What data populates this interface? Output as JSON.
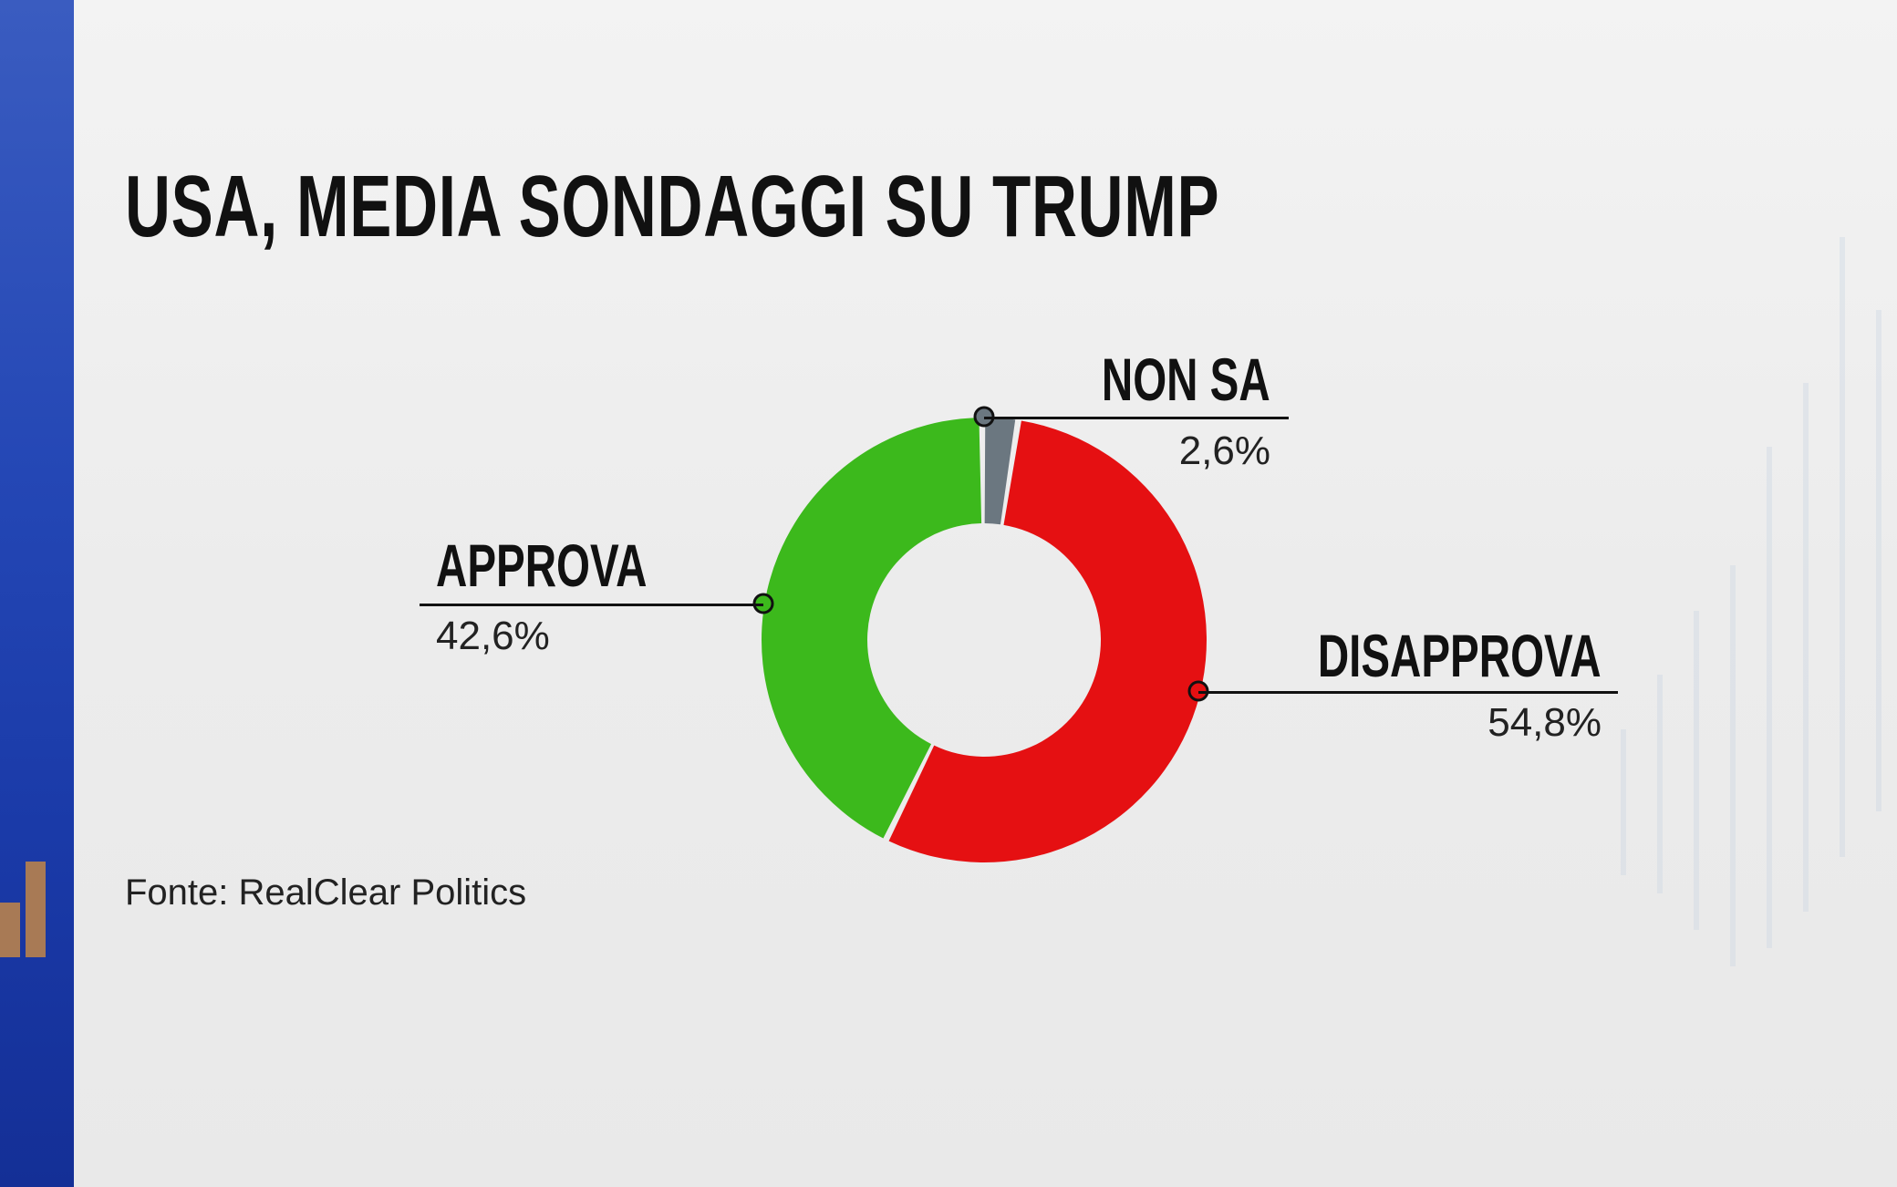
{
  "chart_data": {
    "type": "pie",
    "variant": "donut",
    "title": "USA, MEDIA SONDAGGI SU TRUMP",
    "slices": [
      {
        "label": "NON SA",
        "value": 2.6,
        "value_label": "2,6%",
        "color": "#6b7780"
      },
      {
        "label": "DISAPPROVA",
        "value": 54.8,
        "value_label": "54,8%",
        "color": "#e51012"
      },
      {
        "label": "APPROVA",
        "value": 42.6,
        "value_label": "42,6%",
        "color": "#3cb91c"
      }
    ],
    "source": "Fonte: RealClear Politics"
  }
}
